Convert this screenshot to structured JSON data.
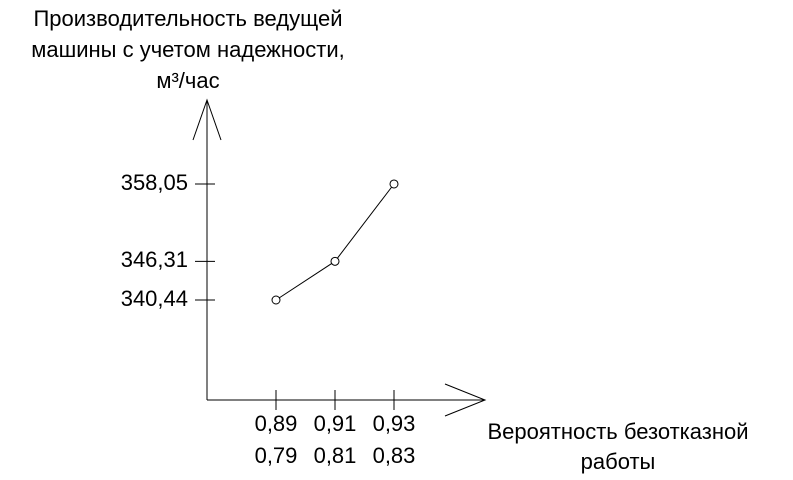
{
  "chart_data": {
    "type": "line",
    "ylabel": [
      "Производительность ведущей",
      "машины с учетом надежности,",
      "м³/час"
    ],
    "xlabel": [
      "Вероятность безотказной",
      "работы"
    ],
    "categories": [
      [
        "0,89",
        "0,79"
      ],
      [
        "0,91",
        "0,81"
      ],
      [
        "0,93",
        "0,83"
      ]
    ],
    "values": [
      340.44,
      346.31,
      358.05
    ],
    "color": "#000000",
    "ylim": [
      325.26,
      370.8
    ],
    "yticks": [
      {
        "value": 340.44,
        "label": "340,44"
      },
      {
        "value": 346.31,
        "label": "346,31"
      },
      {
        "value": 358.05,
        "label": "358,05"
      }
    ]
  }
}
